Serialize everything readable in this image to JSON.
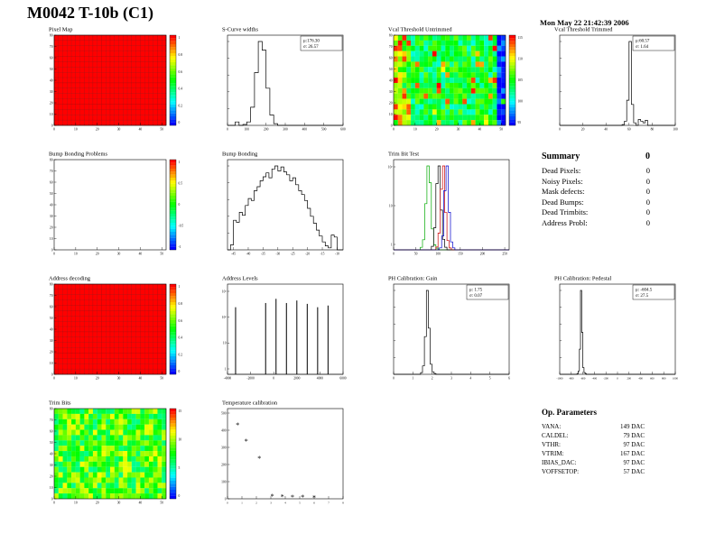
{
  "page": {
    "title": "M0042 T-10b (C1)",
    "date": "Mon May 22 21:42:39 2006"
  },
  "summary": {
    "title": "Summary",
    "total": "0",
    "rows": [
      {
        "label": "Dead Pixels:",
        "value": "0"
      },
      {
        "label": "Noisy Pixels:",
        "value": "0"
      },
      {
        "label": "Mask defects:",
        "value": "0"
      },
      {
        "label": "Dead Bumps:",
        "value": "0"
      },
      {
        "label": "Dead Trimbits:",
        "value": "0"
      },
      {
        "label": "Address Probl:",
        "value": "0"
      }
    ]
  },
  "op_parameters": {
    "title": "Op. Parameters",
    "rows": [
      {
        "label": "VANA:",
        "value": "149 DAC"
      },
      {
        "label": "CALDEL:",
        "value": "79 DAC"
      },
      {
        "label": "VTHR:",
        "value": "97 DAC"
      },
      {
        "label": "VTRIM:",
        "value": "167 DAC"
      },
      {
        "label": "IBIAS_DAC:",
        "value": "97 DAC"
      },
      {
        "label": "VOFFSETOP:",
        "value": "57 DAC"
      }
    ]
  },
  "chart_data": [
    {
      "type": "heatmap",
      "title": "Pixel Map",
      "xlim": [
        0,
        52
      ],
      "xticks": [
        0,
        10,
        20,
        30,
        40,
        50
      ],
      "ylim": [
        0,
        80
      ],
      "yticks": [
        0,
        10,
        20,
        30,
        40,
        50,
        60,
        70,
        80
      ],
      "heatmap": {
        "mode": "uniform",
        "grid": true
      },
      "colorbar_ticks": [
        "1",
        "0.8",
        "0.6",
        "0.4",
        "0.2",
        "0"
      ]
    },
    {
      "type": "hist",
      "title": "S-Curve widths",
      "xlim": [
        0,
        600
      ],
      "xticks": [
        0,
        100,
        200,
        300,
        400,
        500,
        600
      ],
      "x0": 0,
      "dx": 20,
      "color": "#000000",
      "values": [
        0,
        0,
        0.04,
        0,
        0.01,
        0.04,
        0.21,
        0.61,
        0.97,
        0.87,
        0.43,
        0.12,
        0.02,
        0,
        0,
        0,
        0,
        0,
        0,
        0,
        0,
        0,
        0,
        0,
        0,
        0,
        0,
        0,
        0,
        0
      ],
      "stats": [
        "μ:176.30",
        "σ: 26.57"
      ]
    },
    {
      "type": "heatmap",
      "title": "Vcal Threshold Untrimmed",
      "xlim": [
        0,
        52
      ],
      "xticks": [
        0,
        10,
        20,
        30,
        40,
        50
      ],
      "ylim": [
        0,
        80
      ],
      "yticks": [
        0,
        10,
        20,
        30,
        40,
        50,
        60,
        70,
        80
      ],
      "heatmap": {
        "mode": "noise",
        "base": 0.45,
        "spread": 0.17,
        "hot_left": true,
        "hot_spots": true,
        "cold_right": true
      },
      "colorbar_ticks": [
        "115",
        "110",
        "105",
        "100",
        "95"
      ]
    },
    {
      "type": "hist",
      "title": "Vcal Threshold Trimmed",
      "xlim": [
        0,
        100
      ],
      "xticks": [
        0,
        20,
        40,
        60,
        80,
        100
      ],
      "x0": 54,
      "dx": 2,
      "color": "#000000",
      "values": [
        0.01,
        0.05,
        0.3,
        1.0,
        0.25,
        0.03,
        0,
        0.07,
        0.05,
        0.03,
        0.06
      ],
      "stats": [
        "μ:60.57",
        "σ: 1.64"
      ]
    },
    {
      "type": "heatmap",
      "title": "Bump Bonding Problems",
      "xlim": [
        0,
        52
      ],
      "xticks": [
        0,
        10,
        20,
        30,
        40,
        50
      ],
      "ylim": [
        0,
        80
      ],
      "yticks": [
        0,
        10,
        20,
        30,
        40,
        50,
        60,
        70,
        80
      ],
      "heatmap": {
        "mode": "empty"
      },
      "colorbar_ticks": [
        "1",
        "0.5",
        "0",
        "-0.5",
        "-1"
      ]
    },
    {
      "type": "hist",
      "title": "Bump Bonding",
      "xlim": [
        -47,
        -8
      ],
      "xticks": [
        -45,
        -40,
        -35,
        -30,
        -25,
        -20,
        -15,
        -10
      ],
      "x0": -46,
      "dx": 1,
      "color": "#000000",
      "values": [
        0.05,
        0.3,
        0.28,
        0.38,
        0.35,
        0.45,
        0.52,
        0.5,
        0.6,
        0.64,
        0.7,
        0.74,
        0.78,
        0.73,
        0.82,
        0.85,
        0.8,
        0.84,
        0.79,
        0.76,
        0.7,
        0.73,
        0.66,
        0.6,
        0.56,
        0.5,
        0.42,
        0.34,
        0.27,
        0.2,
        0.14,
        0.08,
        0.04,
        0.02,
        0.15,
        0.13
      ]
    },
    {
      "type": "multihist",
      "title": "Trim Bit Test",
      "xlim": [
        0,
        260
      ],
      "xticks": [
        0,
        50,
        100,
        150,
        200,
        250
      ],
      "yticklabels": [
        "1",
        "10",
        "10²"
      ],
      "series": [
        {
          "color": "#00aa00",
          "x0": 60,
          "dx": 5,
          "values": [
            0.03,
            0.12,
            0.55,
            1.0,
            0.8,
            0.25,
            0.06,
            0.02
          ]
        },
        {
          "color": "#000000",
          "x0": 85,
          "dx": 5,
          "values": [
            0.04,
            0.25,
            0.75,
            0.95,
            0.45,
            0.12,
            0.03
          ]
        },
        {
          "color": "#cc0000",
          "x0": 95,
          "dx": 5,
          "values": [
            0.03,
            0.18,
            0.65,
            0.9,
            0.4,
            0.1,
            0.02
          ]
        },
        {
          "color": "#0000cc",
          "x0": 103,
          "dx": 5,
          "values": [
            0.02,
            0.14,
            0.6,
            0.85,
            0.38,
            0.08,
            0.02
          ]
        }
      ]
    },
    {
      "type": "heatmap",
      "title": "Address decoding",
      "xlim": [
        0,
        52
      ],
      "xticks": [
        0,
        10,
        20,
        30,
        40,
        50
      ],
      "ylim": [
        0,
        80
      ],
      "yticks": [
        0,
        10,
        20,
        30,
        40,
        50,
        60,
        70,
        80
      ],
      "heatmap": {
        "mode": "uniform",
        "grid": true
      },
      "colorbar_ticks": [
        "1",
        "0.8",
        "0.6",
        "0.4",
        "0.2",
        "0"
      ]
    },
    {
      "type": "spikes",
      "title": "Address Levels",
      "xlim": [
        -4000,
        6000
      ],
      "xticks": [
        -4000,
        -2000,
        0,
        2000,
        4000,
        6000
      ],
      "yticklabels": [
        "1",
        "10",
        "10²",
        "10³"
      ],
      "spikes": [
        {
          "x": -3300,
          "h": 0.8
        },
        {
          "x": -700,
          "h": 0.85
        },
        {
          "x": 200,
          "h": 0.9
        },
        {
          "x": 1100,
          "h": 0.85
        },
        {
          "x": 2000,
          "h": 0.88
        },
        {
          "x": 2900,
          "h": 0.84
        },
        {
          "x": 3800,
          "h": 0.8
        },
        {
          "x": 4700,
          "h": 0.82
        }
      ]
    },
    {
      "type": "hist",
      "title": "PH Calibration: Gain",
      "xlim": [
        0,
        6
      ],
      "xticks": [
        0,
        1,
        2,
        3,
        4,
        5,
        6
      ],
      "x0": 1.4,
      "dx": 0.1,
      "color": "#000000",
      "values": [
        0.02,
        0.1,
        0.45,
        1.0,
        0.55,
        0.12,
        0.03,
        0.01
      ],
      "stats": [
        "μ: 1.75",
        "σ: 0.07"
      ]
    },
    {
      "type": "hist",
      "title": "PH Calibration: Pedestal",
      "xlim": [
        -1000,
        1000
      ],
      "xticks": [
        -1000,
        -800,
        -600,
        -400,
        -200,
        0,
        200,
        400,
        600,
        800,
        1000
      ],
      "x0": -700,
      "dx": 20,
      "color": "#000000",
      "values": [
        0.01,
        0.04,
        0.3,
        1.0,
        0.5,
        0.08,
        0.02,
        0.01
      ],
      "stats": [
        "μ: -604.5",
        "σ: 27.5"
      ]
    },
    {
      "type": "heatmap",
      "title": "Trim Bits",
      "xlim": [
        0,
        52
      ],
      "xticks": [
        0,
        10,
        20,
        30,
        40,
        50
      ],
      "ylim": [
        0,
        80
      ],
      "yticks": [
        0,
        10,
        20,
        30,
        40,
        50,
        60,
        70,
        80
      ],
      "heatmap": {
        "mode": "noise",
        "base": 0.55,
        "spread": 0.2
      },
      "colorbar_ticks": [
        "15",
        "10",
        "5",
        "0"
      ]
    },
    {
      "type": "scatter",
      "title": "Temperature calibration",
      "xlim": [
        0,
        8
      ],
      "xticks": [
        0,
        1,
        2,
        3,
        4,
        5,
        6,
        7,
        8
      ],
      "ylim": [
        0,
        500
      ],
      "yticks": [
        0,
        100,
        200,
        300,
        400,
        500
      ],
      "marker": "*",
      "points": [
        [
          0.7,
          430
        ],
        [
          1.3,
          335
        ],
        [
          2.2,
          235
        ],
        [
          3.1,
          15
        ],
        [
          3.8,
          12
        ],
        [
          4.5,
          10
        ],
        [
          5.2,
          9
        ],
        [
          6.0,
          8
        ]
      ]
    }
  ]
}
